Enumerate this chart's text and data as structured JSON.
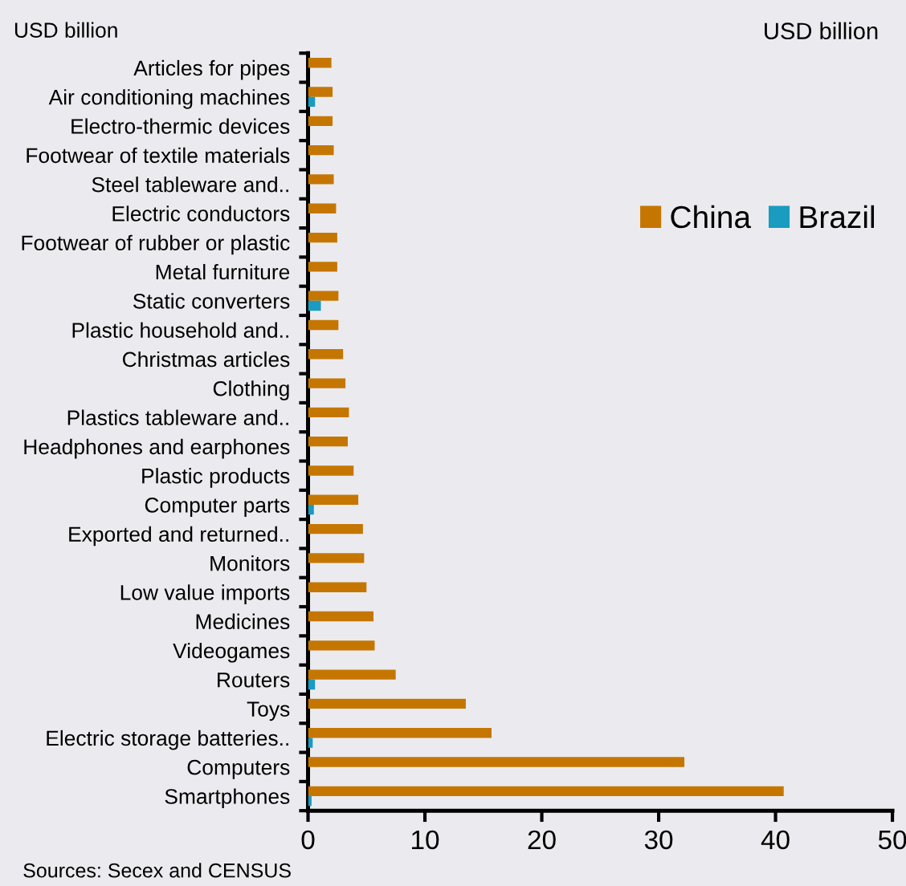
{
  "chart_data": {
    "type": "bar",
    "orientation": "horizontal",
    "ylabel": "USD billion",
    "xlabel": "USD billion",
    "categories": [
      "Articles for pipes",
      "Air conditioning machines",
      "Electro-thermic devices",
      "Footwear of textile materials",
      "Steel tableware and..",
      "Electric conductors",
      "Footwear of rubber or plastic",
      "Metal furniture",
      "Static converters",
      "Plastic household and..",
      "Christmas articles",
      "Clothing",
      "Plastics tableware and..",
      "Headphones and earphones",
      "Plastic products",
      "Computer parts",
      "Exported and returned..",
      "Monitors",
      "Low value imports",
      "Medicines",
      "Videogames",
      "Routers",
      "Toys",
      "Electric storage batteries..",
      "Computers",
      "Smartphones"
    ],
    "series": [
      {
        "name": "China",
        "color": "#c57600",
        "values": [
          2.0,
          2.1,
          2.1,
          2.2,
          2.2,
          2.4,
          2.5,
          2.5,
          2.6,
          2.6,
          3.0,
          3.2,
          3.5,
          3.4,
          3.9,
          4.3,
          4.7,
          4.8,
          5.0,
          5.6,
          5.7,
          7.5,
          13.5,
          15.7,
          32.2,
          40.7
        ]
      },
      {
        "name": "Brazil",
        "color": "#1a9bc0",
        "values": [
          null,
          0.6,
          0,
          0,
          0,
          0,
          0,
          0,
          1.1,
          0,
          0,
          0,
          0,
          0,
          null,
          0.5,
          0,
          0,
          0,
          0,
          0,
          0.6,
          null,
          0.4,
          0,
          0.3
        ]
      }
    ],
    "xlim": [
      0,
      50
    ],
    "xticks": [
      0,
      10,
      20,
      30,
      40,
      50
    ],
    "grid": false,
    "legend": "right",
    "annotations": [
      "Sources: Secex and CENSUS"
    ]
  }
}
